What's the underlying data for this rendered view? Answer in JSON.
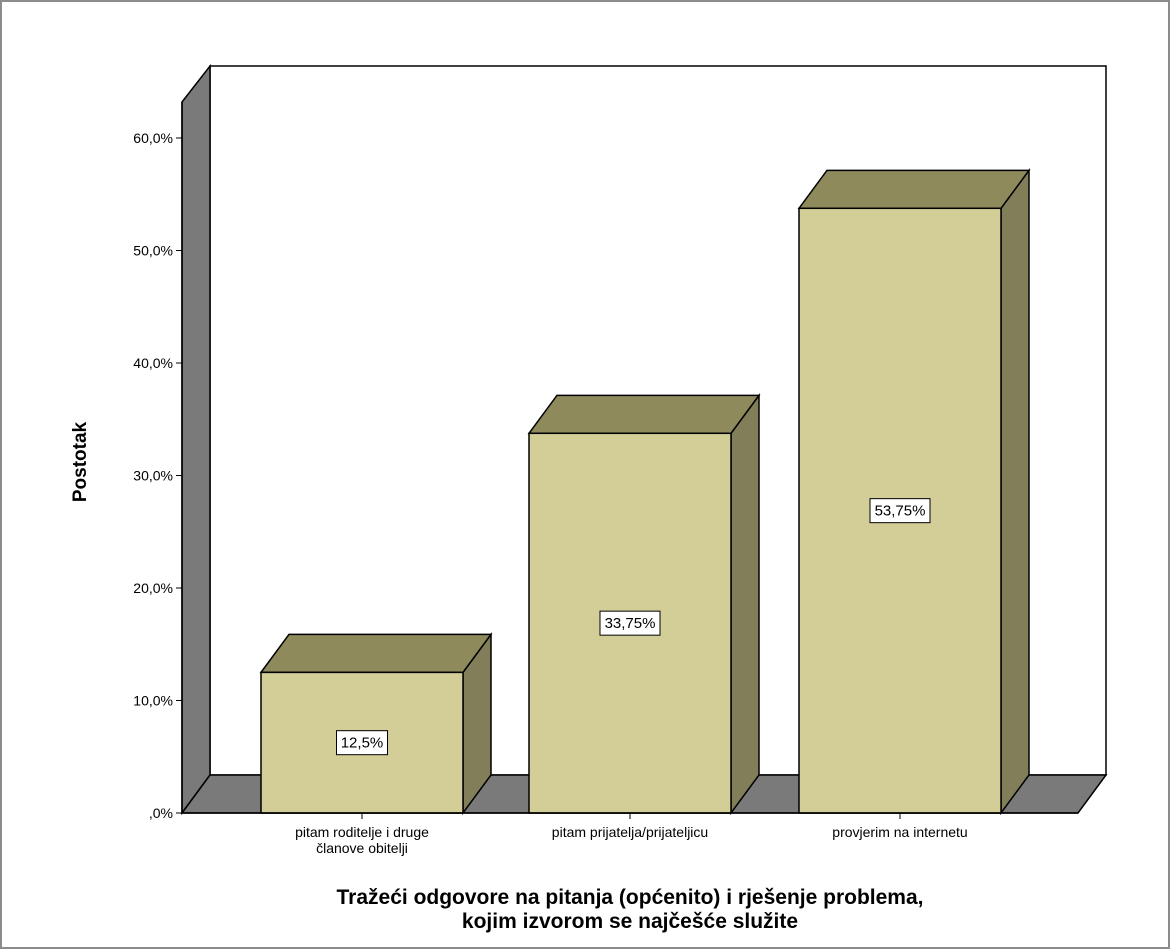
{
  "chart_data": {
    "type": "bar",
    "categories": [
      [
        "pitam roditelje i druge",
        "članove obitelji"
      ],
      [
        "pitam prijatelja/prijateljicu"
      ],
      [
        "provjerim na internetu"
      ]
    ],
    "values": [
      12.5,
      33.75,
      53.75
    ],
    "data_labels": [
      "12,5%",
      "33,75%",
      "53,75%"
    ],
    "xlabel": [
      "Tražeći odgovore na pitanja (općenito) i rješenje problema,",
      "kojim izvorom se najčešće služite"
    ],
    "ylabel": "Postotak",
    "ylim": [
      0,
      60
    ],
    "yticks": [
      0,
      10,
      20,
      30,
      40,
      50,
      60
    ],
    "ytick_labels": [
      ",0%",
      "10,0%",
      "20,0%",
      "30,0%",
      "40,0%",
      "50,0%",
      "60,0%"
    ],
    "grid": false,
    "three_d": true,
    "colors": {
      "bar_front": "#d3cd97",
      "bar_top": "#8e8a5c",
      "bar_side": "#827e5a",
      "wall": "#7a7a7a",
      "floor": "#7a7a7a"
    }
  }
}
